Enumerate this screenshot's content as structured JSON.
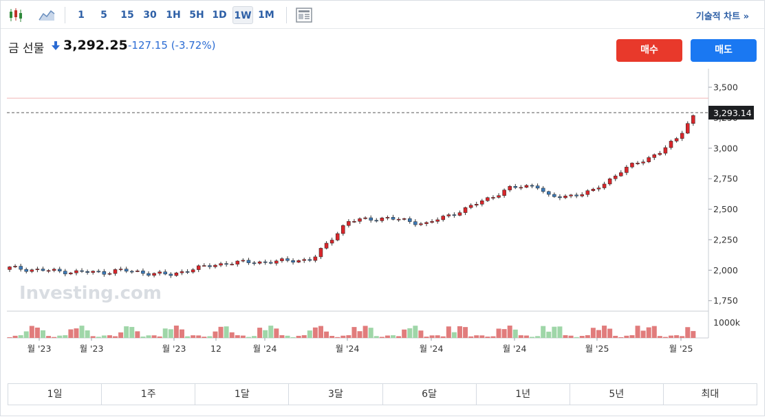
{
  "toolbar": {
    "intervals": [
      "1",
      "5",
      "15",
      "30",
      "1H",
      "5H",
      "1D",
      "1W",
      "1M"
    ],
    "active_interval": "1W",
    "technical_chart_label": "기술적 차트 »"
  },
  "quote": {
    "name": "금 선물",
    "price": "3,292.25",
    "change": "-127.15",
    "change_pct": "(-3.72%)",
    "direction": "down"
  },
  "actions": {
    "buy_label": "매수",
    "sell_label": "매도"
  },
  "chart_data": {
    "type": "candlestick",
    "y_ticks": [
      "3,500",
      "3,250",
      "3,000",
      "2,750",
      "2,500",
      "2,250",
      "2,000",
      "1,750"
    ],
    "current_price_label": "3,293.14",
    "current_price": 3293.14,
    "volume_tick_label": "1000k",
    "x_tick_labels": [
      "월 '23",
      "월 '23",
      "월 '23",
      "12",
      "월 '24",
      "월 '24",
      "월 '24",
      "월 '24",
      "월 '25",
      "월 '25"
    ],
    "watermark": "Investing.com",
    "colors": {
      "up": "#d8262b",
      "down": "#3d7ab8",
      "vol_up": "#e17c7c",
      "vol_down": "#9fd6a8"
    }
  },
  "periods": [
    "1일",
    "1주",
    "1달",
    "3달",
    "6달",
    "1년",
    "5년",
    "최대"
  ]
}
